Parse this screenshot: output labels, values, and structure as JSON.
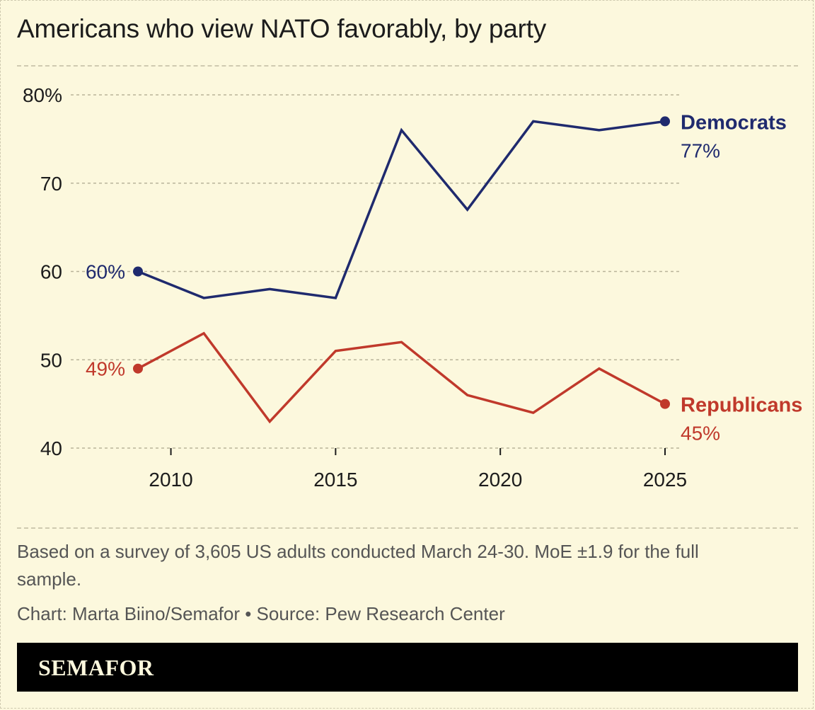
{
  "title": "Americans who view NATO favorably, by party",
  "note": "Based on a survey of 3,605 US adults conducted March 24-30. MoE ±1.9 for the full sample.",
  "credit": "Chart: Marta Biino/Semafor • Source: Pew Research Center",
  "logo": "SEMAFOR",
  "colors": {
    "background": "#fcf8dd",
    "democrats": "#1f2a6e",
    "republicans": "#c0392b",
    "text": "#1c1c1c",
    "muted": "#555555",
    "grid": "#b9b49a"
  },
  "chart_data": {
    "type": "line",
    "title": "Americans who view NATO favorably, by party",
    "xlabel": "",
    "ylabel": "",
    "x": [
      2009,
      2011,
      2013,
      2015,
      2017,
      2019,
      2021,
      2023,
      2025
    ],
    "xlim": [
      2007,
      2026
    ],
    "ylim": [
      40,
      80
    ],
    "yticks": [
      40,
      50,
      60,
      70,
      80
    ],
    "ytick_labels": [
      "40",
      "50",
      "60",
      "70",
      "80%"
    ],
    "xticks": [
      2010,
      2015,
      2020,
      2025
    ],
    "xtick_labels": [
      "2010",
      "2015",
      "2020",
      "2025"
    ],
    "grid": true,
    "legend": "direct labels at line ends",
    "series": [
      {
        "name": "Democrats",
        "values": [
          60,
          57,
          58,
          57,
          76,
          67,
          77,
          76,
          77
        ],
        "start_label": "60%",
        "end_label": "77%"
      },
      {
        "name": "Republicans",
        "values": [
          49,
          53,
          43,
          51,
          52,
          46,
          44,
          49,
          45
        ],
        "start_label": "49%",
        "end_label": "45%"
      }
    ]
  }
}
